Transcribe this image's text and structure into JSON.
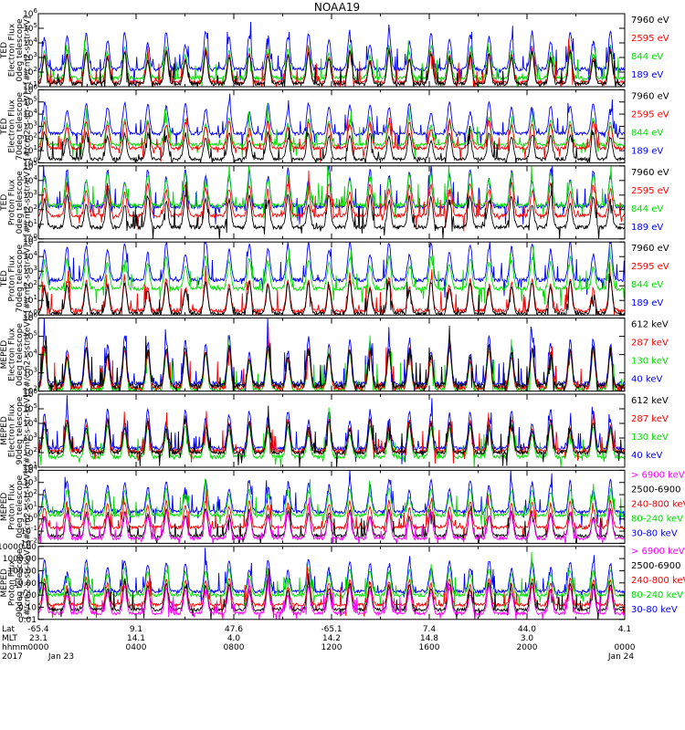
{
  "title": "NOAA19",
  "chart_data": {
    "type": "line",
    "title": "NOAA19",
    "xaxis": {
      "rows": [
        {
          "label": "Lat",
          "ticks": [
            "-65.4",
            "9.1",
            "47.6",
            "-65.1",
            "7.4",
            "44.0",
            "4.1"
          ]
        },
        {
          "label": "MLT",
          "ticks": [
            "23.1",
            "14.1",
            "4.0",
            "14.2",
            "14.8",
            "3.0",
            ""
          ]
        },
        {
          "label": "hhmm",
          "ticks": [
            "0000",
            "0400",
            "0800",
            "1200",
            "1600",
            "2000",
            "0000"
          ]
        }
      ],
      "year": "2017",
      "start_date": "Jan 23",
      "end_date": "Jan 24",
      "range": [
        "0000",
        "2400"
      ]
    },
    "panels": [
      {
        "ylabel": [
          "TED",
          "Electron Flux",
          "0deg telescope",
          "[#/cm2-s-str-eV]"
        ],
        "yscale": "log",
        "yticks": [
          "10^1",
          "10^2",
          "10^3",
          "10^4",
          "10^5",
          "10^6"
        ],
        "series": [
          {
            "name": "7960 eV",
            "color": "#000000",
            "base": 1.2
          },
          {
            "name": "2595 eV",
            "color": "#ff0000",
            "base": 1.3
          },
          {
            "name": "844 eV",
            "color": "#00dd00",
            "base": 1.6
          },
          {
            "name": "189 eV",
            "color": "#0000ff",
            "base": 2.2
          }
        ]
      },
      {
        "ylabel": [
          "TED",
          "Electron Flux",
          "70deg telescope",
          "[#/cm2-s-str-eV]"
        ],
        "yscale": "log",
        "yticks": [
          "10^0",
          "10^1",
          "10^2",
          "10^3",
          "10^4",
          "10^5",
          "10^6"
        ],
        "series": [
          {
            "name": "7960 eV",
            "color": "#000000",
            "base": 0.3
          },
          {
            "name": "2595 eV",
            "color": "#ff0000",
            "base": 1.2
          },
          {
            "name": "844 eV",
            "color": "#00dd00",
            "base": 1.5
          },
          {
            "name": "189 eV",
            "color": "#0000ff",
            "base": 2.4
          }
        ]
      },
      {
        "ylabel": [
          "TED",
          "Proton Flux",
          "0deg telescope",
          "[#/cm2-s-str-eV]"
        ],
        "yscale": "log",
        "yticks": [
          "10^0",
          "10^1",
          "10^2",
          "10^3",
          "10^4",
          "10^5"
        ],
        "series": [
          {
            "name": "7960 eV",
            "color": "#000000",
            "base": 0.8
          },
          {
            "name": "2595 eV",
            "color": "#ff0000",
            "base": 1.6
          },
          {
            "name": "844 eV",
            "color": "#00dd00",
            "base": 2.3
          },
          {
            "name": "189 eV",
            "color": "#0000ff",
            "base": 2.2
          }
        ]
      },
      {
        "ylabel": [
          "TED",
          "Proton Flux",
          "70deg telescope",
          "[#/cm2-s-str-eV]"
        ],
        "yscale": "log",
        "yticks": [
          "10^0",
          "10^1",
          "10^2",
          "10^3",
          "10^4",
          "10^5"
        ],
        "series": [
          {
            "name": "7960 eV",
            "color": "#000000",
            "base": 0.1
          },
          {
            "name": "2595 eV",
            "color": "#ff0000",
            "base": 0.3
          },
          {
            "name": "844 eV",
            "color": "#00dd00",
            "base": 1.8
          },
          {
            "name": "189 eV",
            "color": "#0000ff",
            "base": 2.4
          }
        ]
      },
      {
        "ylabel": [
          "MEPED",
          "Electron Flux",
          "0deg telescope",
          "[#/cm2-s-str-keV]"
        ],
        "yscale": "log",
        "yticks": [
          "10^2",
          "10^3",
          "10^4",
          "10^5",
          "10^6"
        ],
        "series": [
          {
            "name": "612 keV",
            "color": "#000000",
            "base": 2.3
          },
          {
            "name": "287 keV",
            "color": "#ff0000",
            "base": 2.2
          },
          {
            "name": "130 keV",
            "color": "#00dd00",
            "base": 2.1
          },
          {
            "name": "40 keV",
            "color": "#0000ff",
            "base": 2.4
          }
        ]
      },
      {
        "ylabel": [
          "MEPED",
          "Electron Flux",
          "90deg telescope",
          "[#/cm2-s-str-keV]"
        ],
        "yscale": "log",
        "yticks": [
          "10^1",
          "10^2",
          "10^3",
          "10^4",
          "10^5",
          "10^6"
        ],
        "series": [
          {
            "name": "612 keV",
            "color": "#000000",
            "base": 2.0
          },
          {
            "name": "287 keV",
            "color": "#ff0000",
            "base": 2.1
          },
          {
            "name": "130 keV",
            "color": "#00dd00",
            "base": 1.7
          },
          {
            "name": "40 keV",
            "color": "#0000ff",
            "base": 2.3
          }
        ]
      },
      {
        "ylabel": [
          "MEPED",
          "Proton Flux",
          "0deg telescope",
          "[#/cm2-s-str-keV]"
        ],
        "yscale": "log",
        "yticks": [
          "10^-2",
          "10^-1",
          "10^0",
          "10^1",
          "10^2",
          "10^3",
          "10^4"
        ],
        "series": [
          {
            "name": "> 6900 keV",
            "color": "#ff00ff",
            "base": -1.6
          },
          {
            "name": "2500-6900",
            "color": "#000000",
            "base": -1.4
          },
          {
            "name": "240-800 keV",
            "color": "#ff0000",
            "base": -0.7
          },
          {
            "name": "80-240 keV",
            "color": "#00dd00",
            "base": 0.3
          },
          {
            "name": "30-80 keV",
            "color": "#0000ff",
            "base": 0.6
          }
        ]
      },
      {
        "ylabel": [
          "MEPED",
          "Proton Flux",
          "90deg telescope",
          "[#/cm2-s-str-keV]"
        ],
        "yscale": "log",
        "yticks": [
          "0.01",
          "0.10",
          "1.00",
          "10.00",
          "100.00",
          "1000.00",
          "10000.00"
        ],
        "series": [
          {
            "name": "> 6900 keV",
            "color": "#ff00ff",
            "base": -1.5
          },
          {
            "name": "2500-6900",
            "color": "#000000",
            "base": -1.2
          },
          {
            "name": "240-800 keV",
            "color": "#ff0000",
            "base": -0.8
          },
          {
            "name": "80-240 keV",
            "color": "#00dd00",
            "base": 0.0
          },
          {
            "name": "30-80 keV",
            "color": "#0000ff",
            "base": 0.3
          }
        ]
      }
    ]
  }
}
